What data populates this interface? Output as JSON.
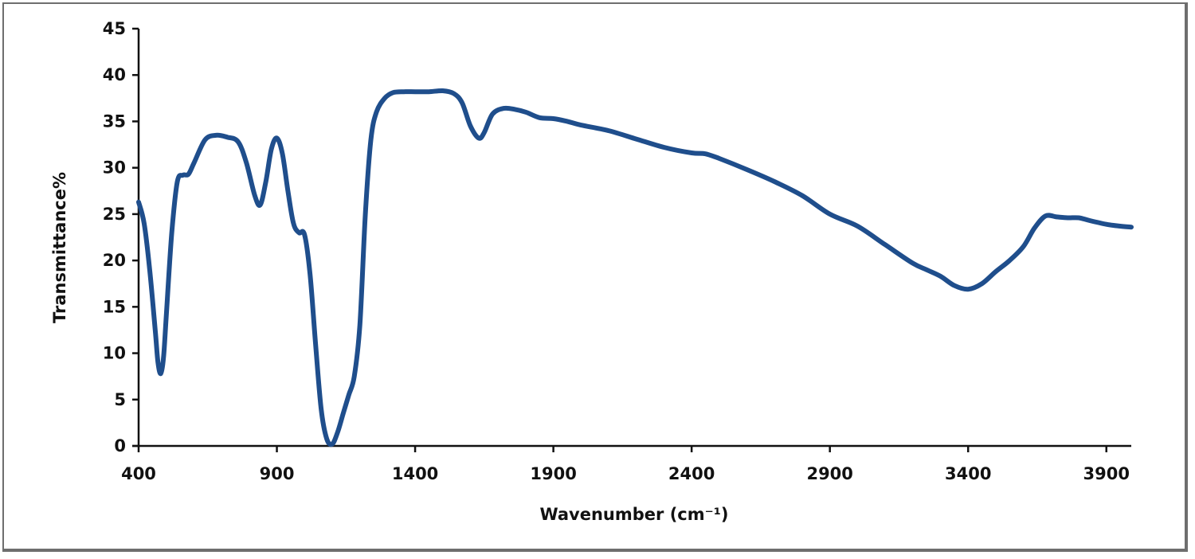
{
  "chart_data": {
    "type": "line",
    "title": "",
    "xlabel": "Wavenumber (cm⁻¹)",
    "ylabel": "Transmittance%",
    "xlim": [
      400,
      3990
    ],
    "ylim": [
      0,
      45
    ],
    "x_ticks": [
      400,
      900,
      1400,
      1900,
      2400,
      2900,
      3400,
      3900
    ],
    "y_ticks": [
      0,
      5,
      10,
      15,
      20,
      25,
      30,
      35,
      40,
      45
    ],
    "grid": false,
    "legend": null,
    "line_color": "#1f4e8c",
    "series": [
      {
        "name": "Transmittance",
        "x": [
          400,
          420,
          440,
          460,
          470,
          480,
          490,
          500,
          520,
          540,
          560,
          580,
          600,
          640,
          680,
          720,
          760,
          790,
          820,
          840,
          860,
          880,
          900,
          920,
          940,
          960,
          980,
          1000,
          1020,
          1040,
          1060,
          1080,
          1100,
          1120,
          1140,
          1160,
          1180,
          1200,
          1220,
          1240,
          1260,
          1290,
          1320,
          1360,
          1400,
          1450,
          1500,
          1540,
          1570,
          1600,
          1630,
          1650,
          1680,
          1720,
          1760,
          1800,
          1850,
          1900,
          1950,
          2000,
          2100,
          2200,
          2300,
          2400,
          2450,
          2500,
          2600,
          2700,
          2800,
          2900,
          3000,
          3100,
          3200,
          3250,
          3300,
          3350,
          3400,
          3450,
          3500,
          3550,
          3600,
          3640,
          3680,
          3720,
          3760,
          3800,
          3840,
          3900,
          3950,
          3990
        ],
        "values": [
          26.3,
          24.0,
          19.0,
          12.5,
          9.0,
          7.8,
          9.5,
          14.0,
          23.0,
          28.5,
          29.2,
          29.3,
          30.5,
          33.0,
          33.5,
          33.3,
          32.8,
          30.5,
          27.0,
          26.0,
          28.5,
          32.0,
          33.2,
          31.5,
          27.5,
          24.0,
          23.0,
          22.8,
          18.5,
          11.0,
          4.0,
          0.8,
          0.2,
          1.5,
          3.5,
          5.5,
          7.5,
          13.0,
          25.0,
          33.0,
          36.0,
          37.5,
          38.1,
          38.2,
          38.2,
          38.2,
          38.3,
          38.0,
          37.0,
          34.5,
          33.2,
          33.8,
          35.8,
          36.4,
          36.3,
          36.0,
          35.4,
          35.3,
          35.0,
          34.6,
          34.0,
          33.1,
          32.2,
          31.6,
          31.5,
          31.0,
          29.8,
          28.5,
          27.0,
          25.0,
          23.7,
          21.7,
          19.7,
          19.0,
          18.3,
          17.3,
          16.9,
          17.5,
          18.8,
          20.0,
          21.5,
          23.5,
          24.8,
          24.7,
          24.6,
          24.6,
          24.3,
          23.9,
          23.7,
          23.6
        ]
      }
    ]
  }
}
